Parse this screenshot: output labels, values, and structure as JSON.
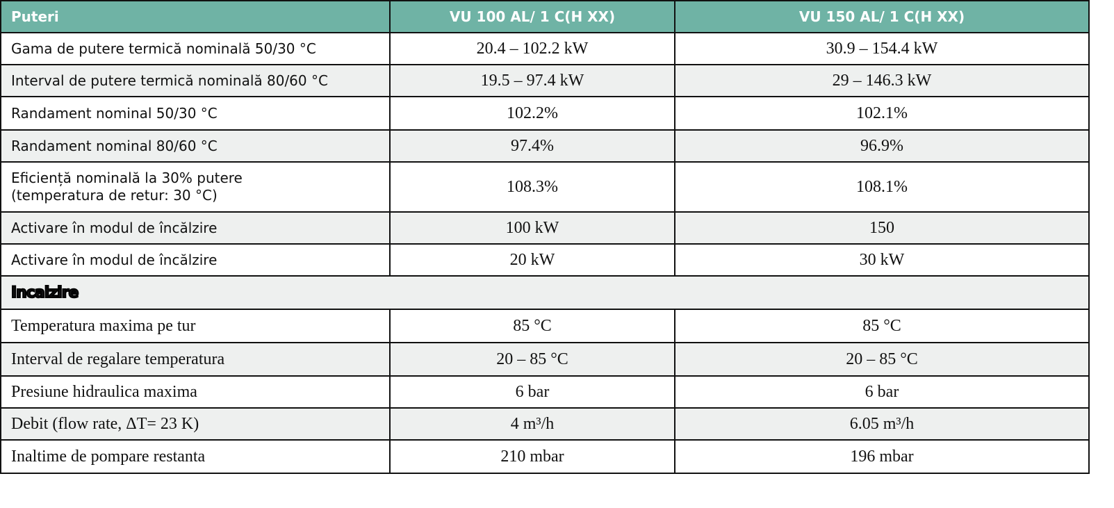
{
  "table": {
    "header": [
      "Puteri",
      "VU 100 AL/ 1 C(H XX)",
      "VU 150 AL/ 1 C(H XX)"
    ],
    "rows": [
      [
        [
          "Gama de putere termică nominală 50/30 °C"
        ],
        "20.4 – 102.2 kW",
        "30.9 – 154.4 kW"
      ],
      [
        [
          "Interval de putere termică nominală 80/60 °C"
        ],
        "19.5 – 97.4 kW",
        "29 – 146.3 kW"
      ],
      [
        [
          "Randament nominal 50/30 °C"
        ],
        "102.2%",
        "102.1%"
      ],
      [
        [
          "Randament nominal 80/60 °C"
        ],
        "97.4%",
        "96.9%"
      ],
      [
        [
          "Eficiență nominală la 30% putere",
          "(temperatura de retur: 30 °C)"
        ],
        "108.3%",
        "108.1%"
      ],
      [
        [
          "Activare în modul de încălzire"
        ],
        "100 kW",
        "150"
      ],
      [
        [
          "Activare în modul de încălzire"
        ],
        "20 kW",
        "30 kW"
      ],
      [
        [
          "Incalzire"
        ]
      ],
      [
        [
          "Temperatura maxima pe tur"
        ],
        "85 °C",
        "85 °C"
      ],
      [
        [
          "Interval de regalare temperatura"
        ],
        "20 – 85 °C",
        "20 – 85 °C"
      ],
      [
        [
          "Presiune hidraulica maxima"
        ],
        "6 bar",
        "6 bar"
      ],
      [
        [
          "Debit (flow rate, ΔT= 23 K)"
        ],
        "4 m³/h",
        "6.05 m³/h"
      ],
      [
        [
          "Inaltime de pompare restanta"
        ],
        "210 mbar",
        "196 mbar"
      ]
    ]
  }
}
